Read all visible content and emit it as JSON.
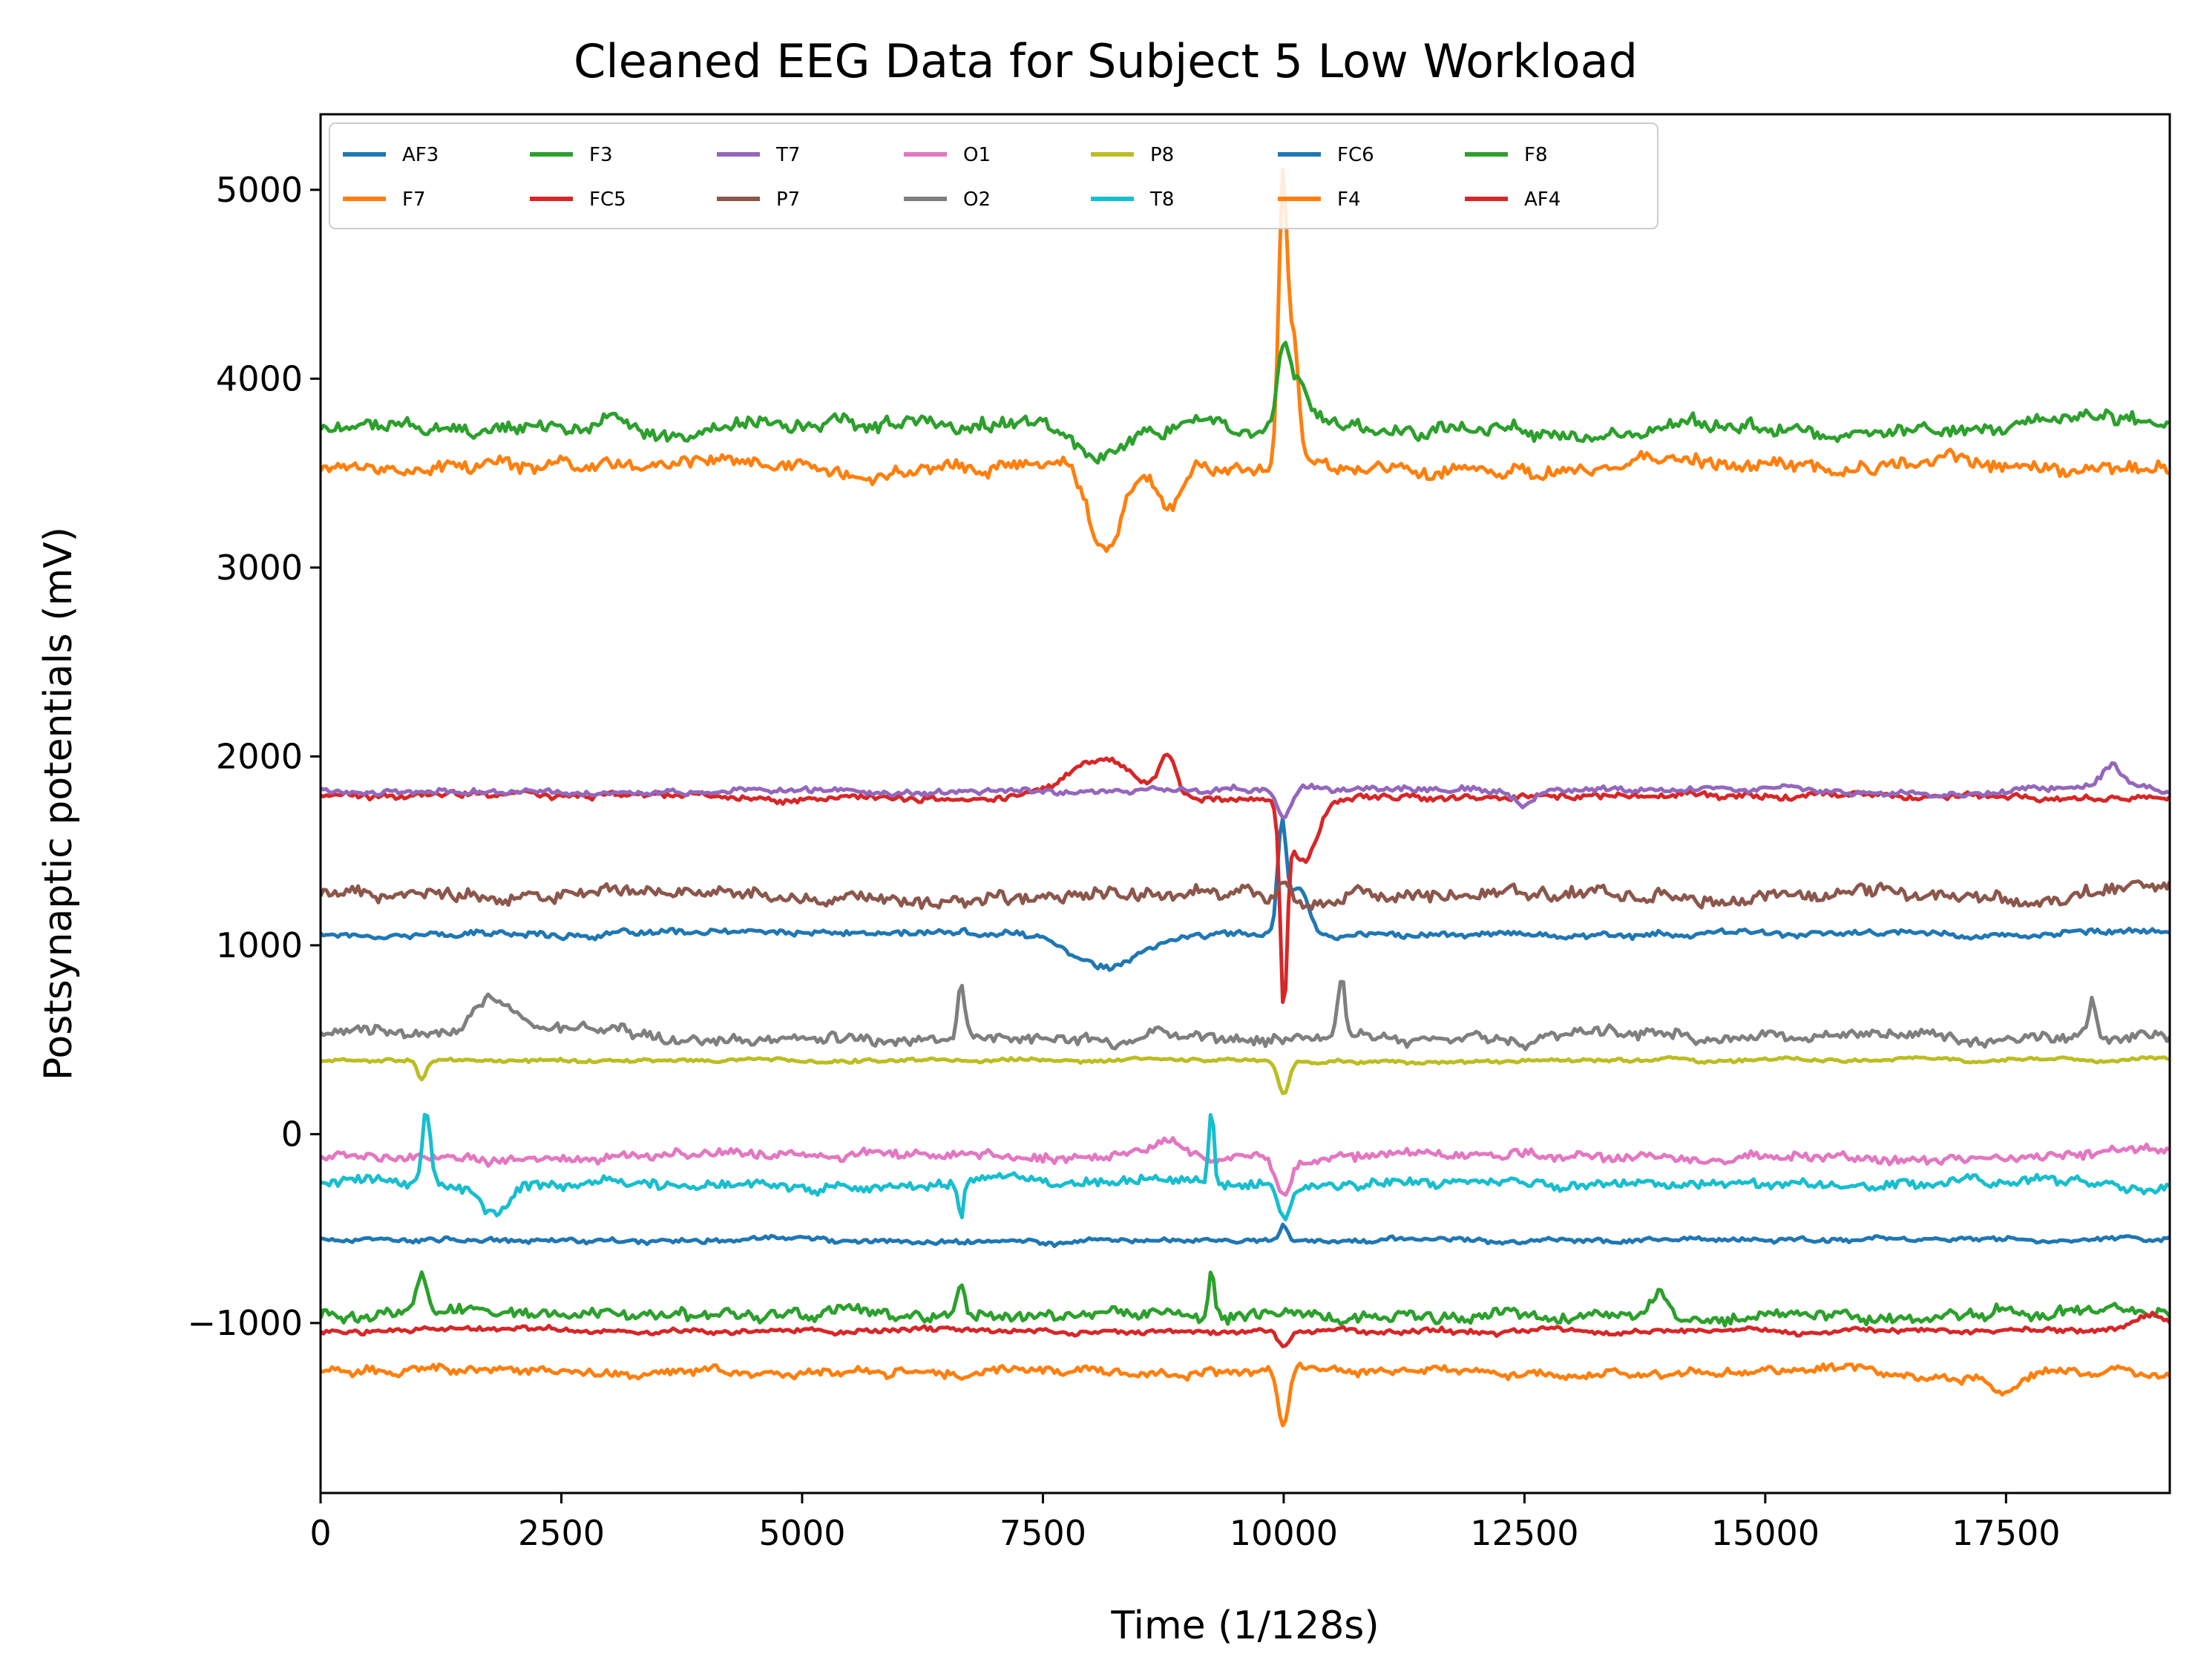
{
  "chart_data": {
    "type": "line",
    "title": "Cleaned EEG Data for Subject 5 Low Workload",
    "xlabel": "Time (1/128s)",
    "ylabel": "Postsynaptic potentials (mV)",
    "xlim": [
      0,
      19200
    ],
    "ylim": [
      -1900,
      5400
    ],
    "x_ticks": [
      0,
      2500,
      5000,
      7500,
      10000,
      12500,
      15000,
      17500
    ],
    "x_tick_labels": [
      "0",
      "2500",
      "5000",
      "7500",
      "10000",
      "12500",
      "15000",
      "17500"
    ],
    "y_ticks": [
      -1000,
      0,
      1000,
      2000,
      3000,
      4000,
      5000
    ],
    "y_tick_labels": [
      "−1000",
      "0",
      "1000",
      "2000",
      "3000",
      "4000",
      "5000"
    ],
    "grid": false,
    "legend_position": "top-left",
    "legend_columns": 7,
    "series": [
      {
        "name": "AF3",
        "color": "#1f77b4",
        "baseline": 1060,
        "noise": 25,
        "events": [
          [
            8200,
            -170,
            500
          ],
          [
            9980,
            550,
            60
          ],
          [
            10150,
            250,
            150
          ]
        ]
      },
      {
        "name": "F7",
        "color": "#ff7f0e",
        "baseline": 3540,
        "noise": 60,
        "events": [
          [
            8150,
            -480,
            250
          ],
          [
            8800,
            -250,
            200
          ],
          [
            9990,
            1450,
            60
          ],
          [
            10100,
            700,
            80
          ]
        ]
      },
      {
        "name": "F3",
        "color": "#2ca02c",
        "baseline": 3740,
        "noise": 60,
        "events": [
          [
            8100,
            -150,
            300
          ],
          [
            10000,
            420,
            80
          ],
          [
            10150,
            200,
            100
          ]
        ]
      },
      {
        "name": "FC5",
        "color": "#d62728",
        "baseline": 1790,
        "noise": 25,
        "events": [
          [
            8100,
            200,
            500
          ],
          [
            8800,
            220,
            120
          ],
          [
            10000,
            -1000,
            50
          ],
          [
            10200,
            -350,
            200
          ]
        ]
      },
      {
        "name": "T7",
        "color": "#9467bd",
        "baseline": 1820,
        "noise": 25,
        "events": [
          [
            10000,
            -150,
            100
          ],
          [
            12500,
            -90,
            150
          ],
          [
            18600,
            110,
            150
          ]
        ]
      },
      {
        "name": "P7",
        "color": "#8c564b",
        "baseline": 1270,
        "noise": 55,
        "events": [
          [
            10000,
            80,
            100
          ]
        ]
      },
      {
        "name": "O1",
        "color": "#e377c2",
        "baseline": -120,
        "noise": 40,
        "events": [
          [
            8800,
            60,
            300
          ],
          [
            10000,
            -200,
            100
          ]
        ]
      },
      {
        "name": "O2",
        "color": "#7f7f7f",
        "baseline": 520,
        "noise": 45,
        "events": [
          [
            1800,
            180,
            300
          ],
          [
            6650,
            300,
            50
          ],
          [
            10600,
            300,
            50
          ],
          [
            18400,
            200,
            50
          ]
        ]
      },
      {
        "name": "P8",
        "color": "#bcbd22",
        "baseline": 390,
        "noise": 15,
        "events": [
          [
            1050,
            -100,
            60
          ],
          [
            10000,
            -180,
            80
          ]
        ]
      },
      {
        "name": "T8",
        "color": "#17becf",
        "baseline": -260,
        "noise": 40,
        "events": [
          [
            1100,
            380,
            60
          ],
          [
            1800,
            -170,
            200
          ],
          [
            6650,
            -200,
            40
          ],
          [
            9250,
            390,
            40
          ],
          [
            10000,
            -180,
            100
          ]
        ]
      },
      {
        "name": "FC6",
        "color": "#1f77b4",
        "baseline": -560,
        "noise": 20,
        "events": [
          [
            10000,
            80,
            60
          ]
        ]
      },
      {
        "name": "F4",
        "color": "#ff7f0e",
        "baseline": -1260,
        "noise": 35,
        "events": [
          [
            10000,
            -300,
            80
          ],
          [
            17500,
            -100,
            200
          ]
        ]
      },
      {
        "name": "F8",
        "color": "#2ca02c",
        "baseline": -950,
        "noise": 50,
        "events": [
          [
            1050,
            220,
            80
          ],
          [
            6650,
            200,
            60
          ],
          [
            9250,
            250,
            40
          ],
          [
            13900,
            150,
            150
          ]
        ]
      },
      {
        "name": "AF4",
        "color": "#d62728",
        "baseline": -1040,
        "noise": 20,
        "events": [
          [
            10000,
            -90,
            80
          ],
          [
            19000,
            90,
            200
          ]
        ]
      }
    ]
  }
}
